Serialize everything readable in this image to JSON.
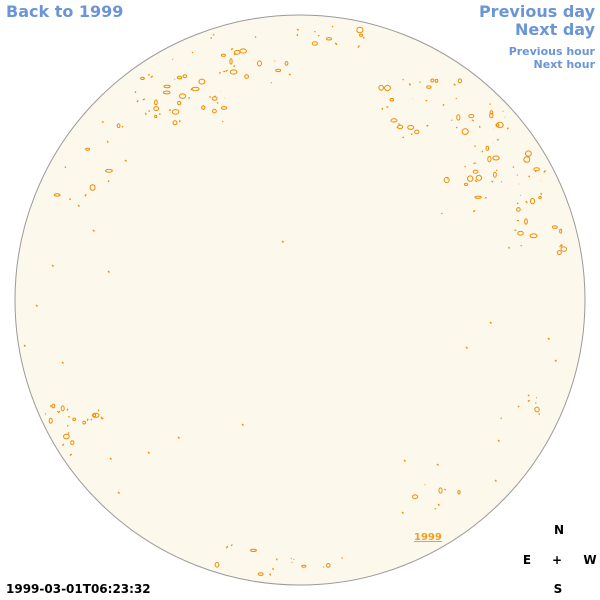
{
  "nav": {
    "back_label": "Back to 1999",
    "prev_day_label": "Previous day",
    "next_day_label": "Next day",
    "prev_hour_label": "Previous hour",
    "next_hour_label": "Next hour"
  },
  "disk": {
    "fill_color": "#fdf8ec",
    "border_color": "#9a9a9a",
    "contour_color": "#f08c00"
  },
  "compass": {
    "north": "N",
    "south": "S",
    "east": "E",
    "west": "W",
    "center": "+"
  },
  "timestamp": "1999-03-01T06:23:32",
  "year_marker": "1999"
}
